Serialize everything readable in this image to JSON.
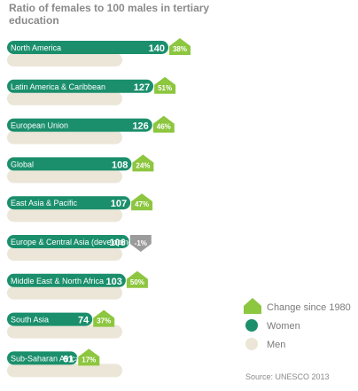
{
  "title": "Ratio of females to 100 males in tertiary education",
  "source": "Source: UNESCO 2013",
  "legend": {
    "change": "Change since 1980",
    "women": "Women",
    "men": "Men"
  },
  "colors": {
    "women": "#1b8f6c",
    "men": "#ebe6d8",
    "change_positive": "#8dc63f",
    "change_negative": "#9b9b9b"
  },
  "chart_data": {
    "type": "bar",
    "categories": [
      "North America",
      "Latin America & Caribbean",
      "European Union",
      "Global",
      "East Asia & Pacific",
      "Europe & Central Asia (developing)",
      "Middle East & North Africa",
      "South Asia",
      "Sub-Saharan Africa"
    ],
    "series": [
      {
        "name": "Women",
        "values": [
          140,
          127,
          126,
          108,
          107,
          106,
          103,
          74,
          61
        ]
      },
      {
        "name": "Men",
        "values": [
          100,
          100,
          100,
          100,
          100,
          100,
          100,
          100,
          100
        ]
      }
    ],
    "change_since_1980": [
      "38%",
      "51%",
      "46%",
      "24%",
      "47%",
      "-1%",
      "50%",
      "37%",
      "17%"
    ],
    "change_direction": [
      "up",
      "up",
      "up",
      "up",
      "up",
      "down",
      "up",
      "up",
      "up"
    ]
  }
}
